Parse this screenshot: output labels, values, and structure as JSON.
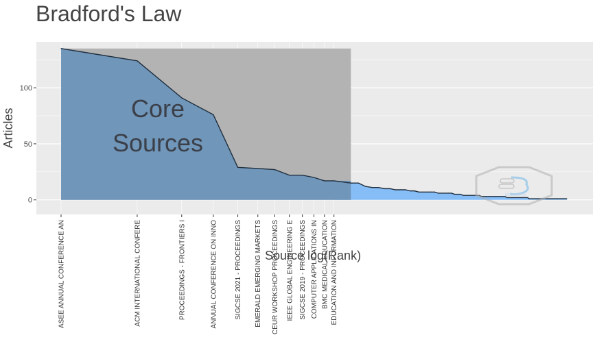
{
  "chart_data": {
    "type": "area",
    "title": "Bradford's Law",
    "xlabel": "Source log(Rank)",
    "ylabel": "Articles",
    "ylim": [
      -13,
      141
    ],
    "yticks": [
      0,
      50,
      100
    ],
    "x_scale": "log",
    "grid": true,
    "core_zone_label": [
      "Core",
      "Sources"
    ],
    "core_zone_max_rank": 14,
    "total_sources": 100,
    "core_sources": [
      {
        "rank": 1,
        "name": "ASEE ANNUAL CONFERENCE AN",
        "articles": 135
      },
      {
        "rank": 2,
        "name": "ACM INTERNATIONAL CONFERE",
        "articles": 124
      },
      {
        "rank": 3,
        "name": "PROCEEDINGS - FRONTIERS I",
        "articles": 91
      },
      {
        "rank": 4,
        "name": "ANNUAL CONFERENCE ON INNO",
        "articles": 76
      },
      {
        "rank": 5,
        "name": "SIGCSE 2021 - PROCEEDINGS",
        "articles": 29
      },
      {
        "rank": 6,
        "name": "EMERALD EMERGING MARKETS",
        "articles": 28
      },
      {
        "rank": 7,
        "name": "CEUR WORKSHOP PROCEEDINGS",
        "articles": 27
      },
      {
        "rank": 8,
        "name": "IEEE GLOBAL ENGINEERING E",
        "articles": 22
      },
      {
        "rank": 9,
        "name": "SIGCSE 2019 - PROCEEDINGS",
        "articles": 22
      },
      {
        "rank": 10,
        "name": "COMPUTER APPLICATIONS IN",
        "articles": 20
      },
      {
        "rank": 11,
        "name": "BMC MEDICAL EDUCATION",
        "articles": 17
      },
      {
        "rank": 12,
        "name": "EDUCATION AND INFORMATION",
        "articles": 17
      }
    ],
    "tail_counts": [
      [
        13,
        16
      ],
      [
        15,
        15
      ],
      [
        16,
        12
      ],
      [
        18,
        11
      ],
      [
        20,
        10
      ],
      [
        23,
        9
      ],
      [
        25,
        8
      ],
      [
        30,
        7
      ],
      [
        35,
        6
      ],
      [
        38,
        5
      ],
      [
        45,
        4
      ],
      [
        57,
        3
      ],
      [
        70,
        2
      ],
      [
        100,
        1
      ]
    ],
    "colors": {
      "core_fill": "#7096ba",
      "tail_fill": "#86bdf7",
      "core_zone": "#b3b3b3",
      "line": "#1f2e3d",
      "panel": "#ebebeb"
    },
    "watermark": "bibliometrix"
  }
}
